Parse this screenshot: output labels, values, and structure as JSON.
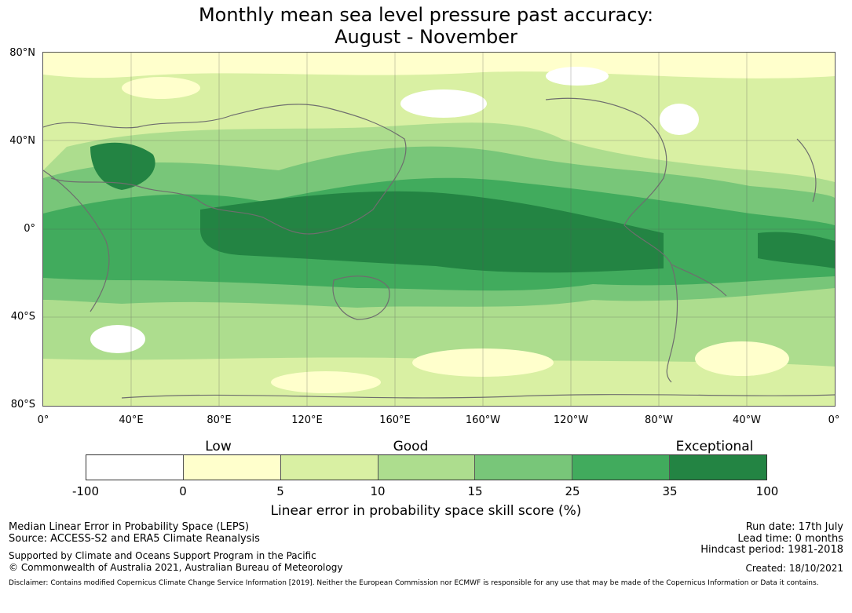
{
  "title": {
    "line1": "Monthly mean sea level pressure past accuracy:",
    "line2": "August - November"
  },
  "map": {
    "lat_labels": [
      "80°N",
      "40°N",
      "0°",
      "40°S",
      "80°S"
    ],
    "lon_labels": [
      "0°",
      "40°E",
      "80°E",
      "120°E",
      "160°E",
      "160°W",
      "120°W",
      "80°W",
      "40°W",
      "0°"
    ]
  },
  "legend": {
    "categories": [
      "Low",
      "Good",
      "Exceptional"
    ],
    "ticks": [
      "-100",
      "0",
      "5",
      "10",
      "15",
      "25",
      "35",
      "100"
    ],
    "colors": [
      "#ffffff",
      "#ffffcc",
      "#d9f0a3",
      "#addd8e",
      "#78c679",
      "#41ab5d",
      "#238443"
    ],
    "label": "Linear error in probability space skill score (%)"
  },
  "footer": {
    "method": "Median Linear Error in Probability Space (LEPS)",
    "source": "Source: ACCESS-S2 and ERA5 Climate Reanalysis",
    "support": "Supported by Climate and Oceans Support Program in the Pacific",
    "copyright": "© Commonwealth of Australia 2021, Australian Bureau of Meteorology",
    "run_date": "Run date: 17th July",
    "lead_time": "Lead time: 0 months",
    "hindcast": "Hindcast period: 1981-2018",
    "created": "Created: 18/10/2021",
    "disclaimer": "Disclaimer: Contains modified Copernicus Climate Change Service Information [2019]. Neither the European Commission nor ECMWF is responsible for any use that may be made of the Copernicus Information or Data it contains."
  }
}
